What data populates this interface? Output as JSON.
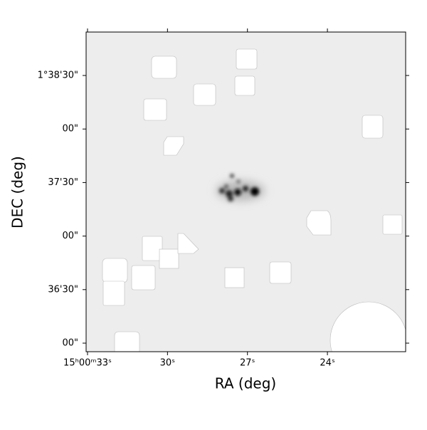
{
  "chart_data": {
    "type": "image",
    "xlabel": "RA (deg)",
    "ylabel": "DEC (deg)",
    "xlim": [
      225.13772,
      225.08777
    ],
    "ylim": [
      1.59867,
      1.64843
    ],
    "xticks": [
      {
        "value": 225.1375,
        "label": "15ʰ00ᵐ33ˢ"
      },
      {
        "value": 225.125,
        "label": "30ˢ"
      },
      {
        "value": 225.1125,
        "label": "27ˢ"
      },
      {
        "value": 225.1,
        "label": "24ˢ"
      }
    ],
    "yticks": [
      {
        "value": 1.6,
        "label": "00\""
      },
      {
        "value": 1.608333,
        "label": "36'30\""
      },
      {
        "value": 1.616667,
        "label": "00\""
      },
      {
        "value": 1.625,
        "label": "37'30\""
      },
      {
        "value": 1.633333,
        "label": "00\""
      },
      {
        "value": 1.641667,
        "label": "1°38'30\""
      }
    ]
  }
}
